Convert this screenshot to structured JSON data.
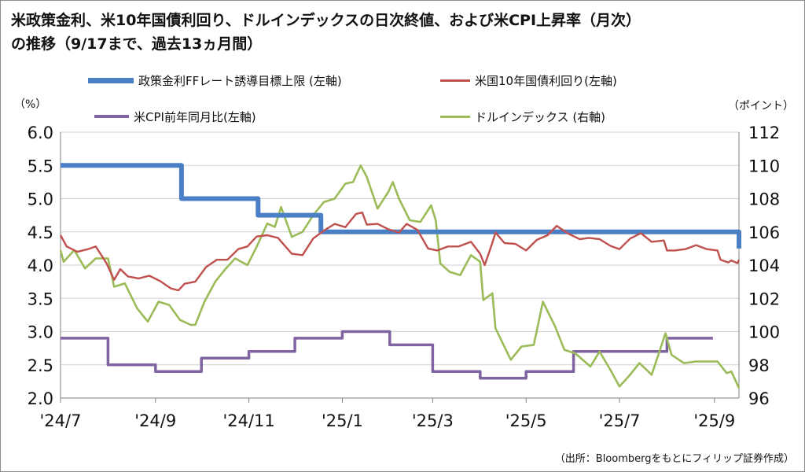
{
  "title_line1": "米政策金利、米10年国債利回り、ドルインデックスの日次終値、および米CPI上昇率（月次）",
  "title_line2": "の推移（9/17まで、過去13ヵ月間）",
  "left_unit": "（%）",
  "right_unit": "（ポイント）",
  "source": "（出所：Bloombergをもとにフィリップ証券作成）",
  "colors": {
    "policy_rate": "#4a7fc6",
    "treasury_10y": "#c0504d",
    "cpi": "#8064a2",
    "dollar_index": "#9bbb59",
    "gridline": "#d0d0d0",
    "axis": "#808080"
  },
  "chart_data": {
    "type": "line",
    "legend": [
      {
        "name": "政策金利FFレート誘導目標上限 (左軸)",
        "color": "#4a7fc6"
      },
      {
        "name": "米国10年国債利回り(左軸)",
        "color": "#c0504d"
      },
      {
        "name": "米CPI前年同月比(左軸)",
        "color": "#8064a2"
      },
      {
        "name": "ドルインデックス (右軸)",
        "color": "#9bbb59"
      }
    ],
    "x_labels": [
      "'24/7",
      "'24/9",
      "'24/11",
      "'25/1",
      "'25/3",
      "'25/5",
      "'25/7",
      "'25/9"
    ],
    "x_range": [
      "2024-07-01",
      "2025-09-17"
    ],
    "y_left": {
      "min": 2.0,
      "max": 6.0,
      "ticks": [
        "2.0",
        "2.5",
        "3.0",
        "3.5",
        "4.0",
        "4.5",
        "5.0",
        "5.5",
        "6.0"
      ]
    },
    "y_right": {
      "min": 96,
      "max": 112,
      "ticks": [
        "96",
        "98",
        "100",
        "102",
        "104",
        "106",
        "108",
        "110",
        "112"
      ]
    },
    "grid": true,
    "series": [
      {
        "name": "政策金利FFレート誘導目標上限 (左軸)",
        "axis": "left",
        "step": true,
        "points": [
          [
            "2024-07-01",
            5.5
          ],
          [
            "2024-09-18",
            5.0
          ],
          [
            "2024-11-07",
            4.75
          ],
          [
            "2024-12-18",
            4.5
          ],
          [
            "2025-09-17",
            4.25
          ]
        ]
      },
      {
        "name": "米国10年国債利回り(左軸)",
        "axis": "left",
        "step": false,
        "points": [
          [
            "2024-07-01",
            4.45
          ],
          [
            "2024-07-05",
            4.28
          ],
          [
            "2024-07-12",
            4.2
          ],
          [
            "2024-07-19",
            4.24
          ],
          [
            "2024-07-24",
            4.28
          ],
          [
            "2024-07-31",
            4.03
          ],
          [
            "2024-08-05",
            3.78
          ],
          [
            "2024-08-09",
            3.94
          ],
          [
            "2024-08-14",
            3.83
          ],
          [
            "2024-08-21",
            3.8
          ],
          [
            "2024-08-28",
            3.84
          ],
          [
            "2024-09-04",
            3.76
          ],
          [
            "2024-09-11",
            3.65
          ],
          [
            "2024-09-16",
            3.62
          ],
          [
            "2024-09-20",
            3.72
          ],
          [
            "2024-09-27",
            3.75
          ],
          [
            "2024-10-04",
            3.97
          ],
          [
            "2024-10-11",
            4.08
          ],
          [
            "2024-10-18",
            4.08
          ],
          [
            "2024-10-25",
            4.24
          ],
          [
            "2024-10-31",
            4.28
          ],
          [
            "2024-11-06",
            4.43
          ],
          [
            "2024-11-13",
            4.45
          ],
          [
            "2024-11-20",
            4.41
          ],
          [
            "2024-11-29",
            4.17
          ],
          [
            "2024-12-06",
            4.15
          ],
          [
            "2024-12-13",
            4.4
          ],
          [
            "2024-12-20",
            4.52
          ],
          [
            "2024-12-27",
            4.62
          ],
          [
            "2025-01-03",
            4.57
          ],
          [
            "2025-01-10",
            4.77
          ],
          [
            "2025-01-14",
            4.79
          ],
          [
            "2025-01-17",
            4.61
          ],
          [
            "2025-01-24",
            4.62
          ],
          [
            "2025-01-31",
            4.54
          ],
          [
            "2025-02-07",
            4.49
          ],
          [
            "2025-02-12",
            4.62
          ],
          [
            "2025-02-19",
            4.53
          ],
          [
            "2025-02-26",
            4.25
          ],
          [
            "2025-03-04",
            4.22
          ],
          [
            "2025-03-11",
            4.28
          ],
          [
            "2025-03-18",
            4.28
          ],
          [
            "2025-03-26",
            4.35
          ],
          [
            "2025-04-01",
            4.17
          ],
          [
            "2025-04-04",
            4.0
          ],
          [
            "2025-04-09",
            4.34
          ],
          [
            "2025-04-11",
            4.49
          ],
          [
            "2025-04-17",
            4.33
          ],
          [
            "2025-04-24",
            4.32
          ],
          [
            "2025-05-01",
            4.22
          ],
          [
            "2025-05-08",
            4.38
          ],
          [
            "2025-05-15",
            4.45
          ],
          [
            "2025-05-21",
            4.59
          ],
          [
            "2025-05-28",
            4.48
          ],
          [
            "2025-06-05",
            4.39
          ],
          [
            "2025-06-11",
            4.41
          ],
          [
            "2025-06-18",
            4.39
          ],
          [
            "2025-06-25",
            4.29
          ],
          [
            "2025-07-01",
            4.24
          ],
          [
            "2025-07-08",
            4.4
          ],
          [
            "2025-07-15",
            4.48
          ],
          [
            "2025-07-22",
            4.35
          ],
          [
            "2025-07-30",
            4.37
          ],
          [
            "2025-08-01",
            4.22
          ],
          [
            "2025-08-06",
            4.22
          ],
          [
            "2025-08-13",
            4.24
          ],
          [
            "2025-08-20",
            4.3
          ],
          [
            "2025-08-27",
            4.24
          ],
          [
            "2025-09-03",
            4.22
          ],
          [
            "2025-09-05",
            4.08
          ],
          [
            "2025-09-10",
            4.04
          ],
          [
            "2025-09-12",
            4.07
          ],
          [
            "2025-09-16",
            4.03
          ],
          [
            "2025-09-17",
            4.08
          ]
        ]
      },
      {
        "name": "米CPI前年同月比(左軸)",
        "axis": "left",
        "step": true,
        "points": [
          [
            "2024-07-01",
            2.9
          ],
          [
            "2024-08-01",
            2.5
          ],
          [
            "2024-09-01",
            2.4
          ],
          [
            "2024-10-01",
            2.6
          ],
          [
            "2024-11-01",
            2.7
          ],
          [
            "2024-12-01",
            2.9
          ],
          [
            "2025-01-01",
            3.0
          ],
          [
            "2025-02-01",
            2.8
          ],
          [
            "2025-03-01",
            2.4
          ],
          [
            "2025-04-01",
            2.3
          ],
          [
            "2025-05-01",
            2.4
          ],
          [
            "2025-06-01",
            2.7
          ],
          [
            "2025-07-01",
            2.7
          ],
          [
            "2025-08-01",
            2.9
          ],
          [
            "2025-08-31",
            2.9
          ]
        ]
      },
      {
        "name": "ドルインデックス (右軸)",
        "axis": "right",
        "step": false,
        "points": [
          [
            "2024-07-01",
            104.9
          ],
          [
            "2024-07-03",
            104.2
          ],
          [
            "2024-07-10",
            104.9
          ],
          [
            "2024-07-17",
            103.8
          ],
          [
            "2024-07-24",
            104.4
          ],
          [
            "2024-08-01",
            104.4
          ],
          [
            "2024-08-05",
            102.7
          ],
          [
            "2024-08-12",
            102.9
          ],
          [
            "2024-08-20",
            101.4
          ],
          [
            "2024-08-27",
            100.6
          ],
          [
            "2024-09-03",
            101.8
          ],
          [
            "2024-09-10",
            101.6
          ],
          [
            "2024-09-17",
            100.7
          ],
          [
            "2024-09-24",
            100.4
          ],
          [
            "2024-09-27",
            100.4
          ],
          [
            "2024-10-03",
            101.8
          ],
          [
            "2024-10-10",
            103.0
          ],
          [
            "2024-10-17",
            103.8
          ],
          [
            "2024-10-23",
            104.4
          ],
          [
            "2024-10-31",
            104.0
          ],
          [
            "2024-11-06",
            105.1
          ],
          [
            "2024-11-13",
            106.5
          ],
          [
            "2024-11-18",
            106.3
          ],
          [
            "2024-11-22",
            107.5
          ],
          [
            "2024-11-29",
            105.7
          ],
          [
            "2024-12-06",
            106.0
          ],
          [
            "2024-12-13",
            107.0
          ],
          [
            "2024-12-20",
            107.8
          ],
          [
            "2024-12-27",
            108.0
          ],
          [
            "2025-01-03",
            108.9
          ],
          [
            "2025-01-08",
            109.0
          ],
          [
            "2025-01-13",
            110.0
          ],
          [
            "2025-01-17",
            109.3
          ],
          [
            "2025-01-24",
            107.4
          ],
          [
            "2025-01-31",
            108.4
          ],
          [
            "2025-02-03",
            109.0
          ],
          [
            "2025-02-07",
            108.0
          ],
          [
            "2025-02-14",
            106.7
          ],
          [
            "2025-02-21",
            106.6
          ],
          [
            "2025-02-28",
            107.6
          ],
          [
            "2025-03-03",
            106.7
          ],
          [
            "2025-03-06",
            104.1
          ],
          [
            "2025-03-12",
            103.6
          ],
          [
            "2025-03-19",
            103.4
          ],
          [
            "2025-03-26",
            104.6
          ],
          [
            "2025-04-01",
            104.2
          ],
          [
            "2025-04-03",
            101.9
          ],
          [
            "2025-04-09",
            102.3
          ],
          [
            "2025-04-11",
            100.2
          ],
          [
            "2025-04-21",
            98.3
          ],
          [
            "2025-04-28",
            99.1
          ],
          [
            "2025-05-06",
            99.2
          ],
          [
            "2025-05-12",
            101.8
          ],
          [
            "2025-05-20",
            100.3
          ],
          [
            "2025-05-26",
            98.9
          ],
          [
            "2025-06-02",
            98.7
          ],
          [
            "2025-06-12",
            97.9
          ],
          [
            "2025-06-18",
            98.8
          ],
          [
            "2025-06-25",
            97.7
          ],
          [
            "2025-07-01",
            96.7
          ],
          [
            "2025-07-07",
            97.3
          ],
          [
            "2025-07-14",
            98.1
          ],
          [
            "2025-07-22",
            97.4
          ],
          [
            "2025-07-31",
            99.9
          ],
          [
            "2025-08-04",
            98.6
          ],
          [
            "2025-08-12",
            98.1
          ],
          [
            "2025-08-20",
            98.2
          ],
          [
            "2025-08-27",
            98.2
          ],
          [
            "2025-09-03",
            98.2
          ],
          [
            "2025-09-09",
            97.5
          ],
          [
            "2025-09-12",
            97.6
          ],
          [
            "2025-09-17",
            96.6
          ]
        ]
      }
    ]
  }
}
